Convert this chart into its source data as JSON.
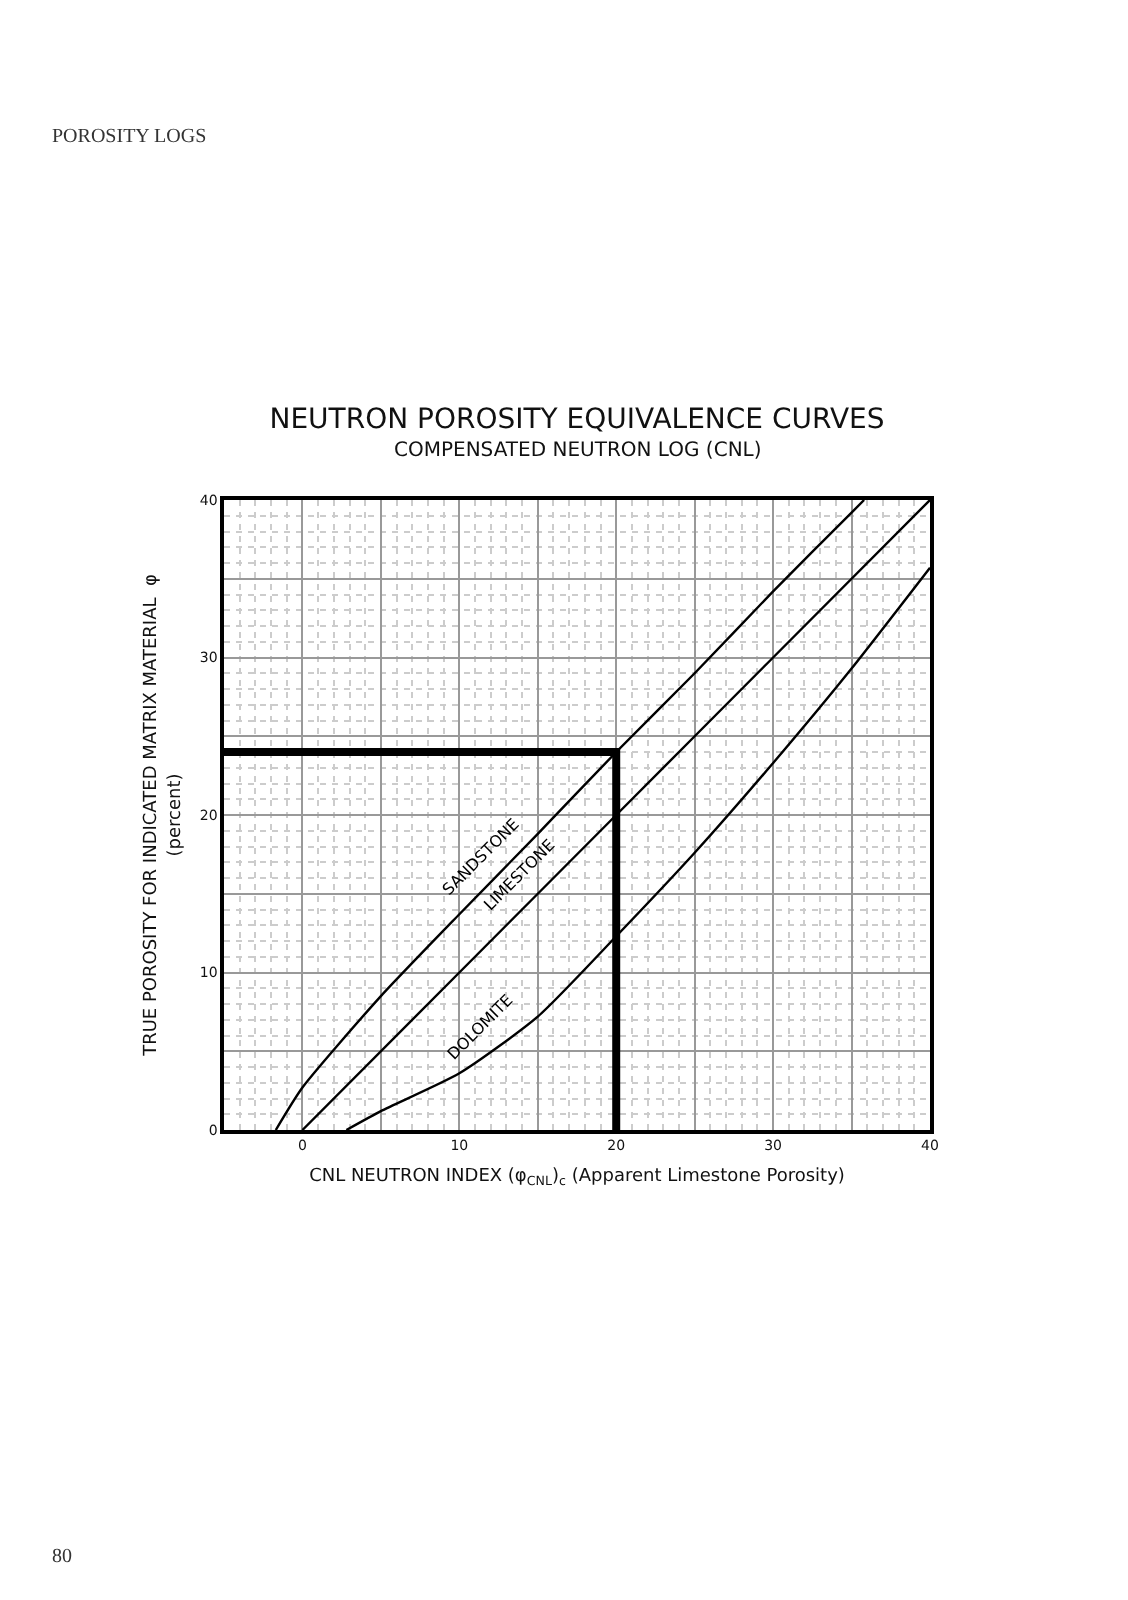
{
  "chart_data": {
    "type": "line",
    "title": "NEUTRON POROSITY EQUIVALENCE CURVES",
    "subtitle": "COMPENSATED NEUTRON LOG (CNL)",
    "xlabel": "CNL NEUTRON INDEX (φ$_{CNL}$)$_{c}$ (Apparent Limestone Porosity)",
    "ylabel": "TRUE POROSITY FOR INDICATED MATRIX MATERIAL  φ\n(percent)",
    "annotations": [
      "POROSITY LOGS",
      "80"
    ],
    "xlim": [
      -5,
      40
    ],
    "ylim": [
      0,
      40
    ],
    "xticks": [
      0,
      {
        "value": 5,
        "label": null
      },
      10,
      {
        "value": 15,
        "label": null
      },
      20,
      {
        "value": 25,
        "label": null
      },
      30,
      {
        "value": 35,
        "label": null
      },
      40
    ],
    "yticks": [
      0,
      {
        "value": 5,
        "label": null
      },
      10,
      {
        "value": 15,
        "label": null
      },
      20,
      {
        "value": 25,
        "label": null
      },
      30,
      {
        "value": 35,
        "label": null
      },
      40
    ],
    "grid": true,
    "marker": "none",
    "line_style": "solid",
    "legend": false,
    "series": [
      {
        "name": "SANDSTONE",
        "color": "#000000",
        "x": [
          -1.7,
          0,
          5,
          10,
          15,
          20,
          25,
          30,
          35,
          35.8
        ],
        "values": [
          0,
          2.7,
          8.5,
          13.7,
          18.8,
          24,
          29,
          34.2,
          39.2,
          40
        ]
      },
      {
        "name": "LIMESTONE",
        "color": "#000000",
        "x": [
          0,
          10,
          20,
          30,
          40
        ],
        "values": [
          0,
          10,
          20,
          30,
          40
        ]
      },
      {
        "name": "DOLOMITE",
        "color": "#000000",
        "x": [
          2.8,
          5,
          10,
          15,
          20,
          25,
          30,
          35,
          40
        ],
        "values": [
          0,
          1.2,
          3.6,
          7.2,
          12.3,
          17.6,
          23.3,
          29.3,
          35.7
        ]
      },
      {
        "color": "#000000",
        "x": [
          -5,
          20,
          20
        ],
        "values": [
          24,
          24,
          0
        ]
      }
    ]
  }
}
